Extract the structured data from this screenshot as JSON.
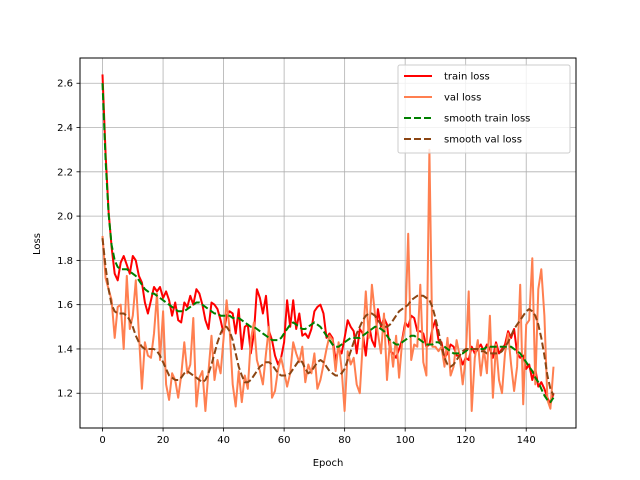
{
  "chart_data": {
    "type": "line",
    "title": "",
    "xlabel": "Epoch",
    "ylabel": "Loss",
    "xlim": [
      -7.45,
      156.45
    ],
    "ylim": [
      1.043,
      2.714
    ],
    "xticks": [
      0,
      20,
      40,
      60,
      80,
      100,
      120,
      140
    ],
    "yticks": [
      1.2,
      1.4,
      1.6,
      1.8,
      2.0,
      2.2,
      2.4,
      2.6
    ],
    "grid": true,
    "legend_position": "top-right",
    "series": [
      {
        "name": "train loss",
        "color": "#ff0000",
        "style": "solid",
        "x": [
          0,
          1,
          2,
          3,
          4,
          5,
          6,
          7,
          8,
          9,
          10,
          11,
          12,
          13,
          14,
          15,
          16,
          17,
          18,
          19,
          20,
          21,
          22,
          23,
          24,
          25,
          26,
          27,
          28,
          29,
          30,
          31,
          32,
          33,
          34,
          35,
          36,
          37,
          38,
          39,
          40,
          41,
          42,
          43,
          44,
          45,
          46,
          47,
          48,
          49,
          50,
          51,
          52,
          53,
          54,
          55,
          56,
          57,
          58,
          59,
          60,
          61,
          62,
          63,
          64,
          65,
          66,
          67,
          68,
          69,
          70,
          71,
          72,
          73,
          74,
          75,
          76,
          77,
          78,
          79,
          80,
          81,
          82,
          83,
          84,
          85,
          86,
          87,
          88,
          89,
          90,
          91,
          92,
          93,
          94,
          95,
          96,
          97,
          98,
          99,
          100,
          101,
          102,
          103,
          104,
          105,
          106,
          107,
          108,
          109,
          110,
          111,
          112,
          113,
          114,
          115,
          116,
          117,
          118,
          119,
          120,
          121,
          122,
          123,
          124,
          125,
          126,
          127,
          128,
          129,
          130,
          131,
          132,
          133,
          134,
          135,
          136,
          137,
          138,
          139,
          140,
          141,
          142,
          143,
          144,
          145,
          146,
          147,
          148,
          149
        ],
        "values": [
          2.64,
          2.28,
          2.02,
          1.86,
          1.74,
          1.71,
          1.79,
          1.82,
          1.78,
          1.74,
          1.82,
          1.8,
          1.73,
          1.7,
          1.61,
          1.56,
          1.62,
          1.68,
          1.66,
          1.68,
          1.63,
          1.66,
          1.62,
          1.55,
          1.61,
          1.53,
          1.52,
          1.61,
          1.59,
          1.64,
          1.6,
          1.67,
          1.65,
          1.6,
          1.53,
          1.49,
          1.61,
          1.6,
          1.58,
          1.53,
          1.47,
          1.55,
          1.57,
          1.56,
          1.47,
          1.58,
          1.4,
          1.5,
          1.51,
          1.38,
          1.47,
          1.67,
          1.63,
          1.56,
          1.64,
          1.48,
          1.44,
          1.37,
          1.33,
          1.36,
          1.43,
          1.62,
          1.5,
          1.62,
          1.49,
          1.56,
          1.46,
          1.47,
          1.45,
          1.49,
          1.57,
          1.59,
          1.6,
          1.56,
          1.45,
          1.47,
          1.45,
          1.35,
          1.4,
          1.38,
          1.45,
          1.53,
          1.5,
          1.48,
          1.38,
          1.49,
          1.47,
          1.37,
          1.51,
          1.44,
          1.41,
          1.58,
          1.5,
          1.54,
          1.51,
          1.39,
          1.38,
          1.36,
          1.4,
          1.44,
          1.52,
          1.5,
          1.55,
          1.54,
          1.48,
          1.48,
          1.47,
          1.41,
          1.42,
          1.49,
          1.53,
          1.44,
          1.43,
          1.36,
          1.38,
          1.42,
          1.41,
          1.37,
          1.37,
          1.33,
          1.36,
          1.35,
          1.41,
          1.38,
          1.4,
          1.42,
          1.39,
          1.42,
          1.4,
          1.36,
          1.43,
          1.38,
          1.4,
          1.42,
          1.48,
          1.45,
          1.49,
          1.38,
          1.36,
          1.37,
          1.31,
          1.33,
          1.26,
          1.31,
          1.23,
          1.25,
          1.22,
          1.18,
          1.15,
          1.2
        ]
      },
      {
        "name": "val loss",
        "color": "#ff7f50",
        "style": "solid",
        "x": [
          0,
          1,
          2,
          3,
          4,
          5,
          6,
          7,
          8,
          9,
          10,
          11,
          12,
          13,
          14,
          15,
          16,
          17,
          18,
          19,
          20,
          21,
          22,
          23,
          24,
          25,
          26,
          27,
          28,
          29,
          30,
          31,
          32,
          33,
          34,
          35,
          36,
          37,
          38,
          39,
          40,
          41,
          42,
          43,
          44,
          45,
          46,
          47,
          48,
          49,
          50,
          51,
          52,
          53,
          54,
          55,
          56,
          57,
          58,
          59,
          60,
          61,
          62,
          63,
          64,
          65,
          66,
          67,
          68,
          69,
          70,
          71,
          72,
          73,
          74,
          75,
          76,
          77,
          78,
          79,
          80,
          81,
          82,
          83,
          84,
          85,
          86,
          87,
          88,
          89,
          90,
          91,
          92,
          93,
          94,
          95,
          96,
          97,
          98,
          99,
          100,
          101,
          102,
          103,
          104,
          105,
          106,
          107,
          108,
          109,
          110,
          111,
          112,
          113,
          114,
          115,
          116,
          117,
          118,
          119,
          120,
          121,
          122,
          123,
          124,
          125,
          126,
          127,
          128,
          129,
          130,
          131,
          132,
          133,
          134,
          135,
          136,
          137,
          138,
          139,
          140,
          141,
          142,
          143,
          144,
          145,
          146,
          147,
          148,
          149
        ],
        "values": [
          1.91,
          1.72,
          1.67,
          1.62,
          1.45,
          1.59,
          1.6,
          1.4,
          1.73,
          1.49,
          1.55,
          1.71,
          1.47,
          1.22,
          1.43,
          1.37,
          1.36,
          1.47,
          1.65,
          1.35,
          1.57,
          1.24,
          1.17,
          1.29,
          1.26,
          1.18,
          1.28,
          1.43,
          1.29,
          1.33,
          1.54,
          1.14,
          1.27,
          1.3,
          1.12,
          1.3,
          1.46,
          1.26,
          1.35,
          1.29,
          1.45,
          1.62,
          1.49,
          1.24,
          1.14,
          1.3,
          1.16,
          1.28,
          1.22,
          1.44,
          1.52,
          1.35,
          1.3,
          1.24,
          1.38,
          1.5,
          1.18,
          1.21,
          1.31,
          1.36,
          1.3,
          1.23,
          1.29,
          1.43,
          1.38,
          1.34,
          1.41,
          1.25,
          1.33,
          1.29,
          1.38,
          1.22,
          1.26,
          1.33,
          1.4,
          1.46,
          1.44,
          1.3,
          1.43,
          1.31,
          1.12,
          1.39,
          1.33,
          1.36,
          1.24,
          1.2,
          1.43,
          1.66,
          1.45,
          1.69,
          1.56,
          1.47,
          1.38,
          1.56,
          1.26,
          1.44,
          1.32,
          1.46,
          1.27,
          1.43,
          1.5,
          1.92,
          1.35,
          1.42,
          1.41,
          1.69,
          1.34,
          1.28,
          2.3,
          1.41,
          1.41,
          1.39,
          1.41,
          1.32,
          1.45,
          1.28,
          1.32,
          1.44,
          1.37,
          1.24,
          1.36,
          1.66,
          1.12,
          1.36,
          1.44,
          1.28,
          1.4,
          1.29,
          1.55,
          1.18,
          1.42,
          1.26,
          1.2,
          1.38,
          1.47,
          1.33,
          1.21,
          1.32,
          1.69,
          1.15,
          1.51,
          1.53,
          1.81,
          1.24,
          1.67,
          1.76,
          1.55,
          1.17,
          1.13,
          1.32
        ]
      },
      {
        "name": "smooth train loss",
        "color": "#008000",
        "style": "dashed",
        "x": [
          0,
          1,
          2,
          3,
          4,
          5,
          6,
          7,
          8,
          9,
          10,
          11,
          12,
          13,
          14,
          15,
          16,
          17,
          18,
          19,
          20,
          21,
          22,
          23,
          24,
          25,
          26,
          27,
          28,
          29,
          30,
          31,
          32,
          33,
          34,
          35,
          36,
          37,
          38,
          39,
          40,
          41,
          42,
          43,
          44,
          45,
          46,
          47,
          48,
          49,
          50,
          51,
          52,
          53,
          54,
          55,
          56,
          57,
          58,
          59,
          60,
          61,
          62,
          63,
          64,
          65,
          66,
          67,
          68,
          69,
          70,
          71,
          72,
          73,
          74,
          75,
          76,
          77,
          78,
          79,
          80,
          81,
          82,
          83,
          84,
          85,
          86,
          87,
          88,
          89,
          90,
          91,
          92,
          93,
          94,
          95,
          96,
          97,
          98,
          99,
          100,
          101,
          102,
          103,
          104,
          105,
          106,
          107,
          108,
          109,
          110,
          111,
          112,
          113,
          114,
          115,
          116,
          117,
          118,
          119,
          120,
          121,
          122,
          123,
          124,
          125,
          126,
          127,
          128,
          129,
          130,
          131,
          132,
          133,
          134,
          135,
          136,
          137,
          138,
          139,
          140,
          141,
          142,
          143,
          144,
          145,
          146,
          147,
          148,
          149
        ],
        "values": [
          2.6,
          2.25,
          2.01,
          1.87,
          1.8,
          1.77,
          1.76,
          1.76,
          1.76,
          1.75,
          1.74,
          1.73,
          1.71,
          1.69,
          1.67,
          1.66,
          1.65,
          1.65,
          1.64,
          1.63,
          1.62,
          1.61,
          1.6,
          1.59,
          1.58,
          1.57,
          1.57,
          1.57,
          1.58,
          1.59,
          1.6,
          1.61,
          1.61,
          1.6,
          1.59,
          1.58,
          1.57,
          1.56,
          1.56,
          1.55,
          1.55,
          1.55,
          1.55,
          1.54,
          1.54,
          1.54,
          1.53,
          1.52,
          1.51,
          1.5,
          1.5,
          1.49,
          1.48,
          1.47,
          1.46,
          1.45,
          1.44,
          1.44,
          1.44,
          1.45,
          1.47,
          1.49,
          1.51,
          1.52,
          1.51,
          1.5,
          1.49,
          1.49,
          1.5,
          1.51,
          1.52,
          1.51,
          1.5,
          1.48,
          1.46,
          1.44,
          1.42,
          1.41,
          1.41,
          1.42,
          1.43,
          1.44,
          1.45,
          1.45,
          1.45,
          1.45,
          1.46,
          1.47,
          1.48,
          1.49,
          1.5,
          1.5,
          1.49,
          1.48,
          1.46,
          1.44,
          1.43,
          1.42,
          1.42,
          1.43,
          1.44,
          1.45,
          1.46,
          1.46,
          1.45,
          1.44,
          1.43,
          1.42,
          1.42,
          1.42,
          1.43,
          1.43,
          1.42,
          1.41,
          1.4,
          1.39,
          1.38,
          1.38,
          1.38,
          1.38,
          1.39,
          1.4,
          1.4,
          1.4,
          1.4,
          1.4,
          1.4,
          1.41,
          1.41,
          1.41,
          1.41,
          1.41,
          1.41,
          1.41,
          1.41,
          1.41,
          1.4,
          1.39,
          1.38,
          1.36,
          1.34,
          1.32,
          1.3,
          1.27,
          1.25,
          1.22,
          1.19,
          1.17,
          1.16,
          1.18
        ]
      },
      {
        "name": "smooth val loss",
        "color": "#8b4513",
        "style": "dashed",
        "x": [
          0,
          1,
          2,
          3,
          4,
          5,
          6,
          7,
          8,
          9,
          10,
          11,
          12,
          13,
          14,
          15,
          16,
          17,
          18,
          19,
          20,
          21,
          22,
          23,
          24,
          25,
          26,
          27,
          28,
          29,
          30,
          31,
          32,
          33,
          34,
          35,
          36,
          37,
          38,
          39,
          40,
          41,
          42,
          43,
          44,
          45,
          46,
          47,
          48,
          49,
          50,
          51,
          52,
          53,
          54,
          55,
          56,
          57,
          58,
          59,
          60,
          61,
          62,
          63,
          64,
          65,
          66,
          67,
          68,
          69,
          70,
          71,
          72,
          73,
          74,
          75,
          76,
          77,
          78,
          79,
          80,
          81,
          82,
          83,
          84,
          85,
          86,
          87,
          88,
          89,
          90,
          91,
          92,
          93,
          94,
          95,
          96,
          97,
          98,
          99,
          100,
          101,
          102,
          103,
          104,
          105,
          106,
          107,
          108,
          109,
          110,
          111,
          112,
          113,
          114,
          115,
          116,
          117,
          118,
          119,
          120,
          121,
          122,
          123,
          124,
          125,
          126,
          127,
          128,
          129,
          130,
          131,
          132,
          133,
          134,
          135,
          136,
          137,
          138,
          139,
          140,
          141,
          142,
          143,
          144,
          145,
          146,
          147,
          148,
          149
        ],
        "values": [
          1.9,
          1.77,
          1.67,
          1.6,
          1.57,
          1.56,
          1.56,
          1.56,
          1.55,
          1.53,
          1.5,
          1.46,
          1.43,
          1.41,
          1.4,
          1.4,
          1.4,
          1.4,
          1.39,
          1.37,
          1.34,
          1.31,
          1.28,
          1.27,
          1.26,
          1.26,
          1.27,
          1.29,
          1.3,
          1.29,
          1.28,
          1.27,
          1.26,
          1.25,
          1.26,
          1.29,
          1.33,
          1.38,
          1.43,
          1.47,
          1.5,
          1.5,
          1.48,
          1.44,
          1.38,
          1.32,
          1.28,
          1.25,
          1.25,
          1.26,
          1.28,
          1.3,
          1.32,
          1.33,
          1.34,
          1.34,
          1.33,
          1.31,
          1.29,
          1.28,
          1.28,
          1.28,
          1.29,
          1.31,
          1.33,
          1.35,
          1.34,
          1.31,
          1.29,
          1.3,
          1.32,
          1.34,
          1.35,
          1.34,
          1.32,
          1.3,
          1.29,
          1.28,
          1.28,
          1.29,
          1.31,
          1.35,
          1.39,
          1.43,
          1.47,
          1.5,
          1.53,
          1.55,
          1.56,
          1.56,
          1.55,
          1.53,
          1.51,
          1.5,
          1.5,
          1.51,
          1.53,
          1.55,
          1.57,
          1.58,
          1.59,
          1.6,
          1.62,
          1.63,
          1.64,
          1.64,
          1.64,
          1.63,
          1.62,
          1.59,
          1.54,
          1.48,
          1.41,
          1.36,
          1.33,
          1.32,
          1.33,
          1.35,
          1.37,
          1.39,
          1.4,
          1.4,
          1.4,
          1.4,
          1.4,
          1.39,
          1.39,
          1.38,
          1.38,
          1.38,
          1.38,
          1.38,
          1.39,
          1.41,
          1.43,
          1.46,
          1.49,
          1.51,
          1.53,
          1.55,
          1.57,
          1.58,
          1.57,
          1.55,
          1.51,
          1.45,
          1.37,
          1.28,
          1.22,
          1.19
        ]
      }
    ]
  }
}
